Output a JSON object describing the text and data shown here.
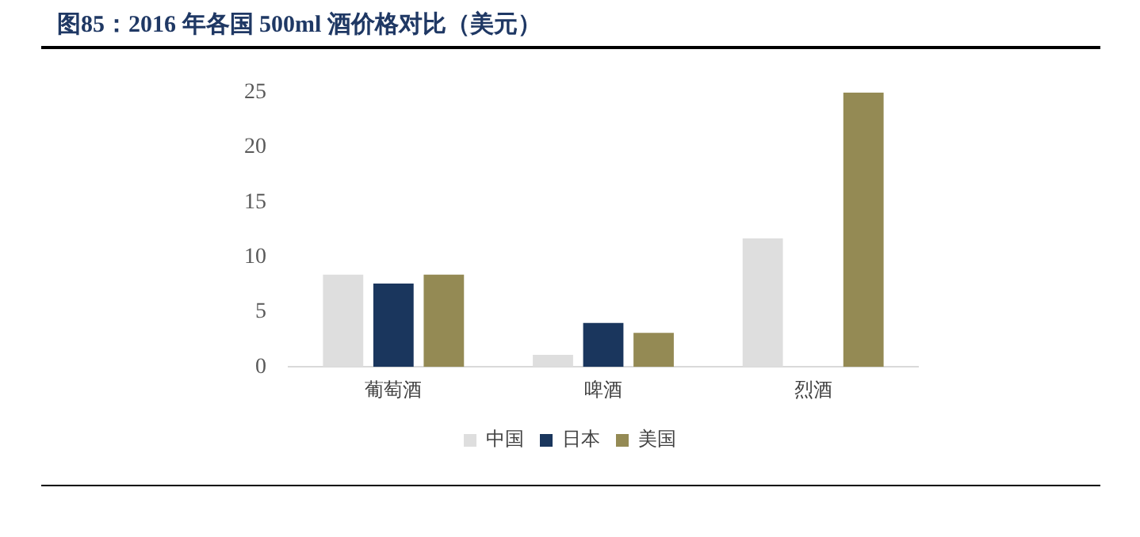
{
  "chart_data": {
    "type": "bar",
    "title": "图85：2016 年各国 500ml 酒价格对比（美元）",
    "categories": [
      "葡萄酒",
      "啤酒",
      "烈酒"
    ],
    "series": [
      {
        "name": "中国",
        "color": "#dedede",
        "values": [
          8.4,
          1.1,
          11.7
        ]
      },
      {
        "name": "日本",
        "color": "#1a365d",
        "values": [
          7.6,
          4.0,
          null
        ]
      },
      {
        "name": "美国",
        "color": "#948a54",
        "values": [
          8.4,
          3.1,
          25
        ]
      }
    ],
    "ylim": [
      0,
      25
    ],
    "yticks": [
      0,
      5,
      10,
      15,
      20,
      25
    ],
    "grid": false,
    "legend": "bottom"
  }
}
